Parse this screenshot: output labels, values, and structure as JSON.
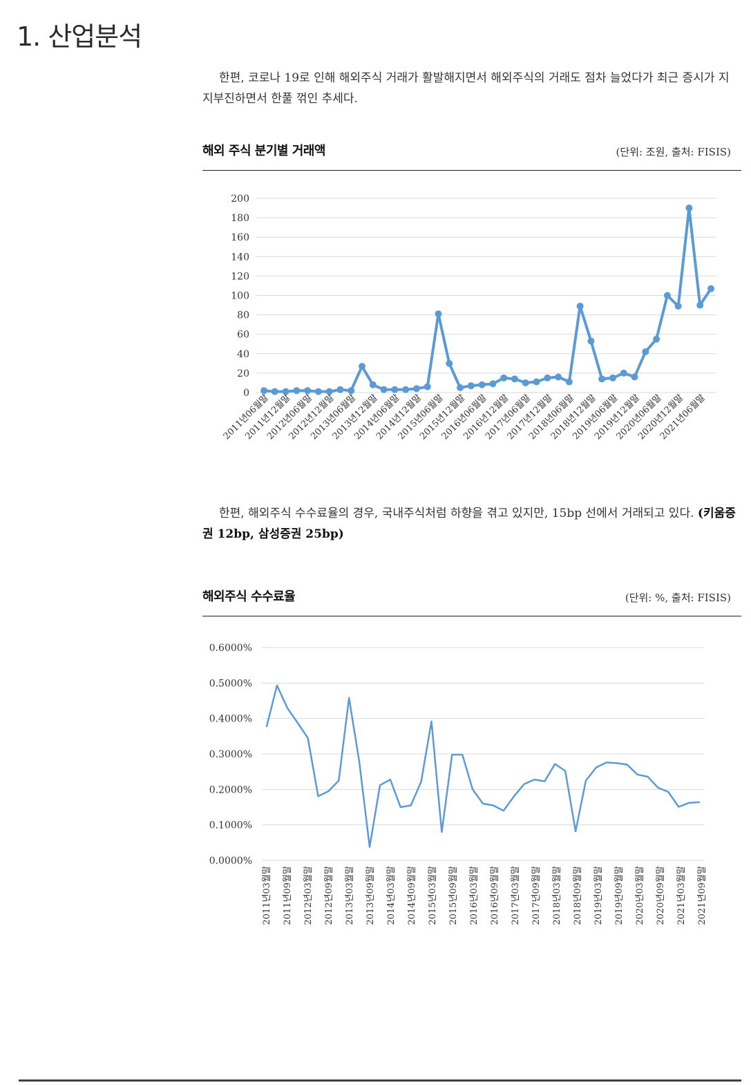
{
  "section_title": "1. 산업분석",
  "para1": "한편, 코로나 19로 인해 해외주식 거래가 활발해지면서 해외주식의 거래도 점차 늘었다가 최근 증시가 지지부진하면서 한풀 꺾인 추세다.",
  "para2_text": "한편, 해외주식 수수료율의 경우, 국내주식처럼 하향을 겪고 있지만, 15bp 선에서 거래되고 있다. ",
  "para2_bold": "(키움증권 12bp, 삼성증권 25bp)",
  "chart1_header": {
    "title": "해외 주식 분기별 거래액",
    "unit": "(단위: 조원, 출처: FISIS)"
  },
  "chart2_header": {
    "title": "해외주식 수수료율",
    "unit": "(단위: %, 출처: FISIS)"
  },
  "chart_data": [
    {
      "type": "line",
      "title": "해외 주식 분기별 거래액",
      "ylim": [
        0,
        200
      ],
      "y_ticks": [
        "0",
        "20",
        "40",
        "60",
        "80",
        "100",
        "120",
        "140",
        "160",
        "180",
        "200"
      ],
      "grid": true,
      "marker": true,
      "color": "#5b9bd5",
      "x_labels": [
        "2011년06월말",
        "2011년12월말",
        "2012년06월말",
        "2012년12월말",
        "2013년06월말",
        "2013년12월말",
        "2014년06월말",
        "2014년12월말",
        "2015년06월말",
        "2015년12월말",
        "2016년06월말",
        "2016년12월말",
        "2017년06월말",
        "2017년12월말",
        "2018년06월말",
        "2018년12월말",
        "2019년06월말",
        "2019년12월말",
        "2020년06월말",
        "2020년12월말",
        "2021년06월말"
      ],
      "values": [
        2,
        1,
        1,
        2,
        2,
        1,
        1,
        3,
        2,
        27,
        8,
        3,
        3,
        3,
        4,
        6,
        81,
        30,
        5,
        7,
        8,
        9,
        15,
        14,
        10,
        11,
        15,
        16,
        11,
        89,
        53,
        14,
        15,
        20,
        16,
        42,
        55,
        100,
        89,
        190,
        90,
        107
      ]
    },
    {
      "type": "line",
      "title": "해외주식 수수료율",
      "ylim": [
        0,
        0.6
      ],
      "y_ticks": [
        "0.0000%",
        "0.1000%",
        "0.2000%",
        "0.3000%",
        "0.4000%",
        "0.5000%",
        "0.6000%"
      ],
      "grid": true,
      "marker": false,
      "color": "#5b9bd5",
      "x_labels": [
        "2011년03월말",
        "2011년09월말",
        "2012년03월말",
        "2012년09월말",
        "2013년03월말",
        "2013년09월말",
        "2014년03월말",
        "2014년09월말",
        "2015년03월말",
        "2015년09월말",
        "2016년03월말",
        "2016년09월말",
        "2017년03월말",
        "2017년09월말",
        "2018년03월말",
        "2018년09월말",
        "2019년03월말",
        "2019년09월말",
        "2020년03월말",
        "2020년09월말",
        "2021년03월말",
        "2021년09월말"
      ],
      "values": [
        0.378,
        0.493,
        0.43,
        0.388,
        0.345,
        0.181,
        0.195,
        0.225,
        0.458,
        0.277,
        0.038,
        0.212,
        0.228,
        0.15,
        0.155,
        0.222,
        0.392,
        0.08,
        0.298,
        0.298,
        0.2,
        0.16,
        0.155,
        0.14,
        0.18,
        0.215,
        0.228,
        0.223,
        0.272,
        0.252,
        0.082,
        0.225,
        0.262,
        0.276,
        0.274,
        0.27,
        0.242,
        0.236,
        0.205,
        0.193,
        0.151,
        0.162,
        0.164
      ]
    }
  ]
}
